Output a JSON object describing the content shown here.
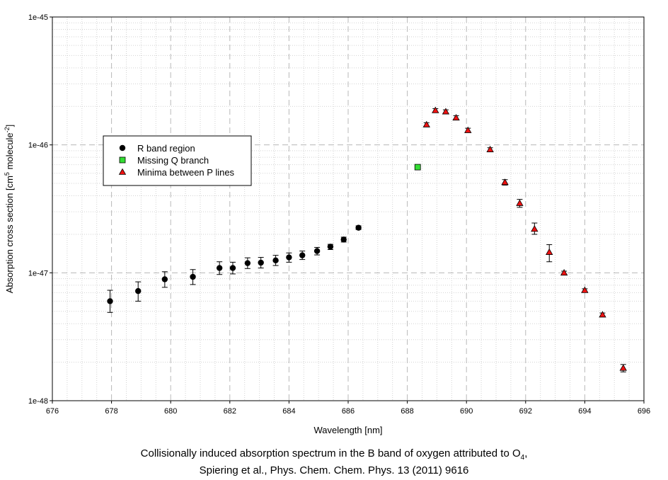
{
  "chart_data": {
    "type": "scatter",
    "y_scale": "log",
    "xlim": [
      676,
      696
    ],
    "ylim": [
      1e-48,
      1e-45
    ],
    "x_ticks": [
      676,
      678,
      680,
      682,
      684,
      686,
      688,
      690,
      692,
      694,
      696
    ],
    "x_tick_labels": [
      "676",
      "678",
      "680",
      "682",
      "684",
      "686",
      "688",
      "690",
      "692",
      "694",
      "696"
    ],
    "y_ticks": [
      1e-48,
      1e-47,
      1e-46,
      1e-45
    ],
    "y_tick_labels": [
      "1e-48",
      "1e-47",
      "1e-46",
      "1e-45"
    ],
    "xlabel": "Wavelength [nm]",
    "ylabel": {
      "base": "Absorption cross section [cm",
      "sup1": "5",
      "mid": " molecule",
      "sup2": "-2",
      "end": "]"
    },
    "grid": true,
    "legend_position": "left-middle",
    "error_bars": true,
    "series": [
      {
        "name": "R band region",
        "marker": "circle",
        "color": "#000000",
        "points": [
          {
            "x": 677.95,
            "y": 6e-48,
            "err_low": 4.9e-48,
            "err_high": 7.3e-48
          },
          {
            "x": 678.9,
            "y": 7.2e-48,
            "err_low": 6e-48,
            "err_high": 8.5e-48
          },
          {
            "x": 679.8,
            "y": 8.9e-48,
            "err_low": 7.7e-48,
            "err_high": 1.02e-47
          },
          {
            "x": 680.75,
            "y": 9.3e-48,
            "err_low": 8.1e-48,
            "err_high": 1.06e-47
          },
          {
            "x": 681.65,
            "y": 1.09e-47,
            "err_low": 9.7e-48,
            "err_high": 1.22e-47
          },
          {
            "x": 682.1,
            "y": 1.09e-47,
            "err_low": 9.8e-48,
            "err_high": 1.21e-47
          },
          {
            "x": 682.6,
            "y": 1.19e-47,
            "err_low": 1.08e-47,
            "err_high": 1.31e-47
          },
          {
            "x": 683.05,
            "y": 1.2e-47,
            "err_low": 1.09e-47,
            "err_high": 1.32e-47
          },
          {
            "x": 683.55,
            "y": 1.25e-47,
            "err_low": 1.14e-47,
            "err_high": 1.37e-47
          },
          {
            "x": 684.0,
            "y": 1.32e-47,
            "err_low": 1.21e-47,
            "err_high": 1.43e-47
          },
          {
            "x": 684.45,
            "y": 1.37e-47,
            "err_low": 1.27e-47,
            "err_high": 1.48e-47
          },
          {
            "x": 684.95,
            "y": 1.48e-47,
            "err_low": 1.38e-47,
            "err_high": 1.58e-47
          },
          {
            "x": 685.4,
            "y": 1.6e-47,
            "err_low": 1.52e-47,
            "err_high": 1.67e-47
          },
          {
            "x": 685.85,
            "y": 1.82e-47,
            "err_low": 1.74e-47,
            "err_high": 1.9e-47
          },
          {
            "x": 686.35,
            "y": 2.25e-47,
            "err_low": 2.18e-47,
            "err_high": 2.33e-47
          }
        ]
      },
      {
        "name": "Missing Q branch",
        "marker": "square",
        "color": "#33dd33",
        "points": [
          {
            "x": 688.35,
            "y": 6.7e-47
          }
        ]
      },
      {
        "name": "Minima between P lines",
        "marker": "triangle",
        "color": "#ee1111",
        "points": [
          {
            "x": 688.65,
            "y": 1.44e-46,
            "err_low": 1.39e-46,
            "err_high": 1.49e-46
          },
          {
            "x": 688.95,
            "y": 1.86e-46,
            "err_low": 1.8e-46,
            "err_high": 1.92e-46
          },
          {
            "x": 689.3,
            "y": 1.82e-46,
            "err_low": 1.76e-46,
            "err_high": 1.88e-46
          },
          {
            "x": 689.65,
            "y": 1.63e-46,
            "err_low": 1.57e-46,
            "err_high": 1.69e-46
          },
          {
            "x": 690.05,
            "y": 1.3e-46,
            "err_low": 1.26e-46,
            "err_high": 1.35e-46
          },
          {
            "x": 690.8,
            "y": 9.2e-47,
            "err_low": 8.9e-47,
            "err_high": 9.5e-47
          },
          {
            "x": 691.3,
            "y": 5.1e-47,
            "err_low": 4.85e-47,
            "err_high": 5.35e-47
          },
          {
            "x": 691.8,
            "y": 3.5e-47,
            "err_low": 3.25e-47,
            "err_high": 3.75e-47
          },
          {
            "x": 692.3,
            "y": 2.2e-47,
            "err_low": 2e-47,
            "err_high": 2.45e-47
          },
          {
            "x": 692.8,
            "y": 1.45e-47,
            "err_low": 1.22e-47,
            "err_high": 1.66e-47
          },
          {
            "x": 693.3,
            "y": 1e-47,
            "err_low": 9.7e-48,
            "err_high": 1.03e-47
          },
          {
            "x": 694.0,
            "y": 7.3e-48,
            "err_low": 7.1e-48,
            "err_high": 7.5e-48
          },
          {
            "x": 694.6,
            "y": 4.7e-48,
            "err_low": 4.55e-48,
            "err_high": 4.85e-48
          },
          {
            "x": 695.3,
            "y": 1.8e-48,
            "err_low": 1.68e-48,
            "err_high": 1.92e-48
          }
        ]
      }
    ]
  },
  "caption": {
    "line1_text": "Collisionally induced absorption spectrum in the B band of oxygen attributed to O",
    "line1_sub": "4",
    "line1_end": ",",
    "line2": "Spiering et al., Phys. Chem. Chem. Phys. 13 (2011) 9616"
  },
  "colors": {
    "grid_major": "#b8b8b8",
    "grid_minor": "#d2d2d2",
    "axis": "#000000"
  }
}
